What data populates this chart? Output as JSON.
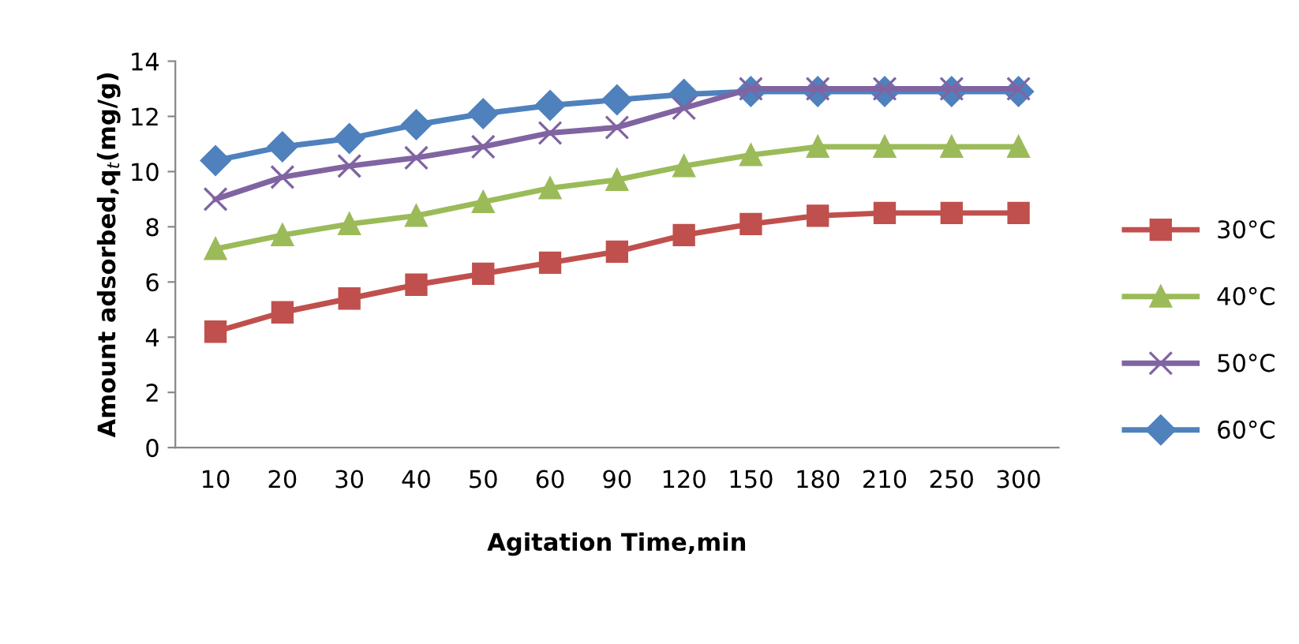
{
  "chart_data": {
    "type": "line",
    "xlabel": "Agitation Time,min",
    "ylabel": "Amount adsorbed,q$_{t}$(mg/g)",
    "categories": [
      "10",
      "20",
      "30",
      "40",
      "50",
      "60",
      "90",
      "120",
      "150",
      "180",
      "210",
      "250",
      "300"
    ],
    "ylim": [
      0,
      14
    ],
    "yticks": [
      0,
      2,
      4,
      6,
      8,
      10,
      12,
      14
    ],
    "grid": false,
    "legend": "right",
    "line_style": "solid",
    "series": [
      {
        "name": "30°C",
        "color": "#c0504d",
        "marker": "square",
        "values": [
          4.2,
          4.9,
          5.4,
          5.9,
          6.3,
          6.7,
          7.1,
          7.7,
          8.1,
          8.4,
          8.5,
          8.5,
          8.5
        ]
      },
      {
        "name": "40°C",
        "color": "#9bbb59",
        "marker": "triangle",
        "values": [
          7.2,
          7.7,
          8.1,
          8.4,
          8.9,
          9.4,
          9.7,
          10.2,
          10.6,
          10.9,
          10.9,
          10.9,
          10.9
        ]
      },
      {
        "name": "50°C",
        "color": "#8064a2",
        "marker": "cross",
        "values": [
          9.0,
          9.8,
          10.2,
          10.5,
          10.9,
          11.4,
          11.6,
          12.3,
          13.0,
          13.0,
          13.0,
          13.0,
          13.0
        ]
      },
      {
        "name": "60°C",
        "color": "#4f81bd",
        "marker": "diamond",
        "values": [
          10.4,
          10.9,
          11.2,
          11.7,
          12.1,
          12.4,
          12.6,
          12.8,
          12.9,
          12.9,
          12.9,
          12.9,
          12.9
        ]
      }
    ]
  }
}
